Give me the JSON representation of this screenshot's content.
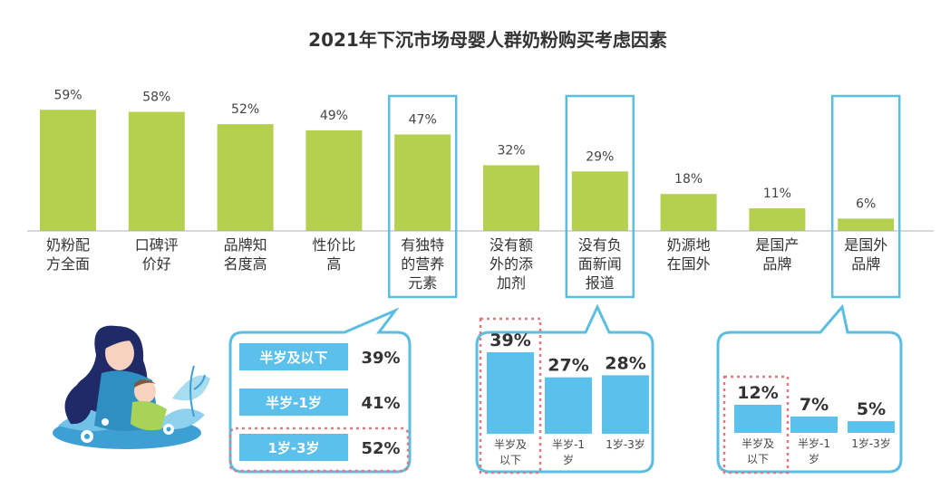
{
  "chart_data": [
    {
      "type": "bar",
      "title": "2021年下沉市场母婴人群奶粉购买考虑因素",
      "categories": [
        [
          "奶粉配",
          "方全面"
        ],
        [
          "口碑评",
          "价好"
        ],
        [
          "品牌知",
          "名度高"
        ],
        [
          "性价比",
          "高"
        ],
        [
          "有独特",
          "的营养",
          "元素"
        ],
        [
          "没有额",
          "外的添",
          "加剂"
        ],
        [
          "没有负",
          "面新闻",
          "报道"
        ],
        [
          "奶源地",
          "在国外"
        ],
        [
          "是国产",
          "品牌"
        ],
        [
          "是国外",
          "品牌"
        ]
      ],
      "values": [
        59,
        58,
        52,
        49,
        47,
        32,
        29,
        18,
        11,
        6
      ],
      "value_labels": [
        "59%",
        "58%",
        "52%",
        "49%",
        "47%",
        "32%",
        "29%",
        "18%",
        "11%",
        "6%"
      ],
      "highlighted": [
        "有独特的营养元素",
        "没有负面新闻报道",
        "是国外品牌"
      ],
      "ylim": [
        0,
        60
      ],
      "colors": {
        "bar": "#b5cf4e",
        "highlight_box": "#5bbde0"
      }
    },
    {
      "type": "bar",
      "orientation": "horizontal",
      "parent": "有独特的营养元素",
      "categories": [
        "半岁及以下",
        "半岁-1岁",
        "1岁-3岁"
      ],
      "values": [
        39,
        41,
        52
      ],
      "value_labels": [
        "39%",
        "41%",
        "52%"
      ],
      "emphasized": "1岁-3岁",
      "colors": {
        "bar": "#5bc0ec"
      }
    },
    {
      "type": "bar",
      "parent": "没有负面新闻报道",
      "categories": [
        [
          "半岁及",
          "以下"
        ],
        [
          "半岁-1",
          "岁"
        ],
        [
          "1岁-3岁"
        ]
      ],
      "values": [
        39,
        27,
        28
      ],
      "value_labels": [
        "39%",
        "27%",
        "28%"
      ],
      "emphasized": "半岁及以下",
      "colors": {
        "bar": "#5bc0ec"
      }
    },
    {
      "type": "bar",
      "parent": "是国外品牌",
      "categories": [
        [
          "半岁及",
          "以下"
        ],
        [
          "半岁-1",
          "岁"
        ],
        [
          "1岁-3岁"
        ]
      ],
      "values": [
        12,
        7,
        5
      ],
      "value_labels": [
        "12%",
        "7%",
        "5%"
      ],
      "emphasized": "半岁及以下",
      "colors": {
        "bar": "#5bc0ec"
      }
    }
  ],
  "illustration": {
    "icon": "mother-baby-illustration"
  }
}
